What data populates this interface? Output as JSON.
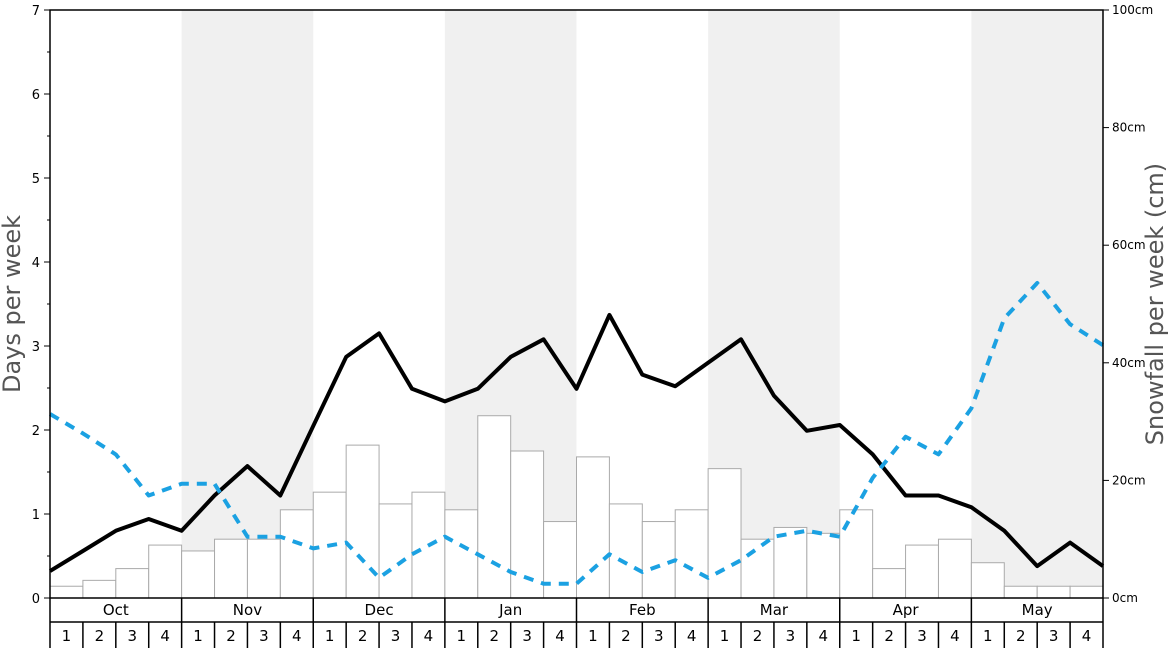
{
  "chart_data": {
    "type": "bar",
    "left_axis": {
      "label": "Days per week",
      "ylim": [
        0,
        7
      ],
      "ticks": [
        "0",
        "1",
        "2",
        "3",
        "4",
        "5",
        "6",
        "7"
      ]
    },
    "right_axis": {
      "label": "Snowfall per week (cm)",
      "ylim": [
        0,
        100
      ],
      "ticks": [
        "0cm",
        "20cm",
        "40cm",
        "60cm",
        "80cm",
        "100cm"
      ]
    },
    "months": [
      "Oct",
      "Nov",
      "Dec",
      "Jan",
      "Feb",
      "Mar",
      "Apr",
      "May"
    ],
    "weeks": [
      "1",
      "2",
      "3",
      "4"
    ],
    "grid": false,
    "colors": {
      "bar_fill": "#ffffff",
      "bar_stroke": "#aaaaaa",
      "shade_band": "#f0f0f0",
      "solid_line": "#000000",
      "dashed_line": "#1ba1e2"
    },
    "series": [
      {
        "kind": "bar",
        "axis": "right",
        "values": [
          2,
          3,
          5,
          9,
          8,
          10,
          10,
          15,
          18,
          26,
          16,
          18,
          15,
          31,
          25,
          13,
          24,
          16,
          13,
          15,
          22,
          10,
          12,
          11,
          15,
          5,
          9,
          10,
          6,
          2,
          2,
          2
        ]
      },
      {
        "kind": "line",
        "style": "solid",
        "axis": "left",
        "values": [
          0.32,
          0.56,
          0.8,
          0.94,
          0.8,
          1.22,
          1.57,
          1.22,
          2.05,
          2.87,
          3.15,
          2.49,
          2.34,
          2.49,
          2.87,
          3.08,
          2.49,
          3.37,
          2.66,
          2.52,
          2.8,
          3.08,
          2.41,
          1.99,
          2.06,
          1.71,
          1.22,
          1.22,
          1.08,
          0.8,
          0.38,
          0.66,
          0.38
        ]
      },
      {
        "kind": "line",
        "style": "dashed",
        "axis": "left",
        "values": [
          2.19,
          1.96,
          1.71,
          1.22,
          1.36,
          1.36,
          0.73,
          0.73,
          0.59,
          0.66,
          0.24,
          0.52,
          0.73,
          0.52,
          0.31,
          0.17,
          0.17,
          0.52,
          0.31,
          0.45,
          0.24,
          0.45,
          0.73,
          0.8,
          0.73,
          1.43,
          1.92,
          1.71,
          2.26,
          3.33,
          3.75,
          3.26,
          3.01
        ]
      }
    ]
  }
}
